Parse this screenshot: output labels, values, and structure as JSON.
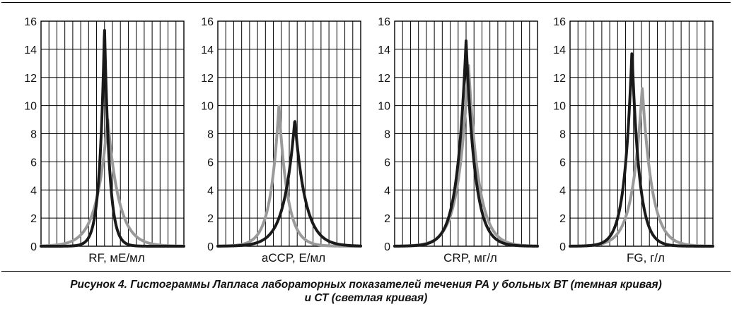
{
  "caption": {
    "line1": "Рисунок 4. Гистограммы Лапласа лабораторных показателей течения РА у больных ВТ (темная кривая)",
    "line2": "и СТ (светлая кривая)"
  },
  "colors": {
    "dark_curve": "#1a1a1a",
    "light_curve": "#9a9a9a",
    "grid": "#000000",
    "background": "#ffffff"
  },
  "chart_data": [
    {
      "type": "line",
      "xlabel": "RF, мЕ/мл",
      "ylim": [
        0,
        16
      ],
      "yticks": [
        0,
        2,
        4,
        6,
        8,
        10,
        12,
        14,
        16
      ],
      "grid": true,
      "x_gridlines": 18,
      "xlim": [
        0,
        18
      ],
      "series": [
        {
          "role": "dark",
          "peak_x": 8.0,
          "peak_y": 15.6,
          "scale": 0.62
        },
        {
          "role": "light",
          "peak_x": 8.4,
          "peak_y": 9.1,
          "scale": 1.4
        }
      ]
    },
    {
      "type": "line",
      "xlabel": "aCCP, Е/мл",
      "ylim": [
        0,
        16
      ],
      "yticks": [
        0,
        2,
        4,
        6,
        8,
        10,
        12,
        14,
        16
      ],
      "grid": true,
      "x_gridlines": 18,
      "xlim": [
        0,
        18
      ],
      "series": [
        {
          "role": "dark",
          "peak_x": 9.7,
          "peak_y": 9.0,
          "scale": 1.33
        },
        {
          "role": "light",
          "peak_x": 7.7,
          "peak_y": 10.0,
          "scale": 1.08
        }
      ]
    },
    {
      "type": "line",
      "xlabel": "CRP, мг/л",
      "ylim": [
        0,
        16
      ],
      "yticks": [
        0,
        2,
        4,
        6,
        8,
        10,
        12,
        14,
        16
      ],
      "grid": true,
      "x_gridlines": 18,
      "xlim": [
        0,
        18
      ],
      "series": [
        {
          "role": "dark",
          "peak_x": 9.0,
          "peak_y": 14.6,
          "scale": 1.12
        },
        {
          "role": "light",
          "peak_x": 9.3,
          "peak_y": 13.0,
          "scale": 1.27
        }
      ]
    },
    {
      "type": "line",
      "xlabel": "FG, г/л",
      "ylim": [
        0,
        16
      ],
      "yticks": [
        0,
        2,
        4,
        6,
        8,
        10,
        12,
        14,
        16
      ],
      "grid": true,
      "x_gridlines": 18,
      "xlim": [
        0,
        18
      ],
      "series": [
        {
          "role": "dark",
          "peak_x": 7.8,
          "peak_y": 13.9,
          "scale": 0.93
        },
        {
          "role": "light",
          "peak_x": 9.1,
          "peak_y": 11.3,
          "scale": 1.23
        }
      ]
    }
  ]
}
